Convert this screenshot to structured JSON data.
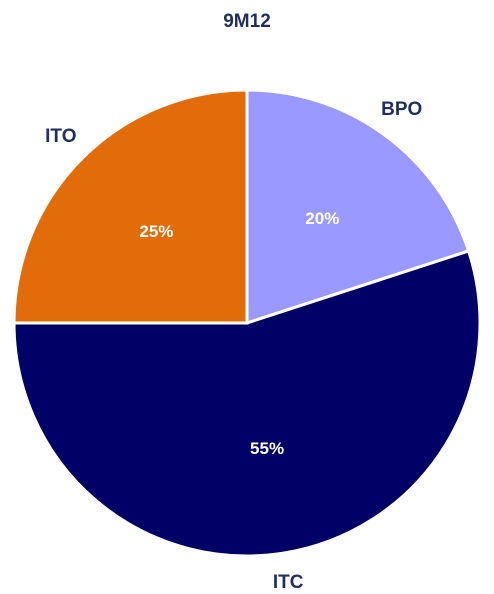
{
  "chart_data": {
    "type": "pie",
    "title": "9M12",
    "categories": [
      "BPO",
      "ITC",
      "ITO"
    ],
    "values": [
      20,
      55,
      25
    ],
    "value_labels": [
      "20%",
      "55%",
      "25%"
    ],
    "colors": [
      "#9999ff",
      "#000066",
      "#e36c0a"
    ]
  }
}
